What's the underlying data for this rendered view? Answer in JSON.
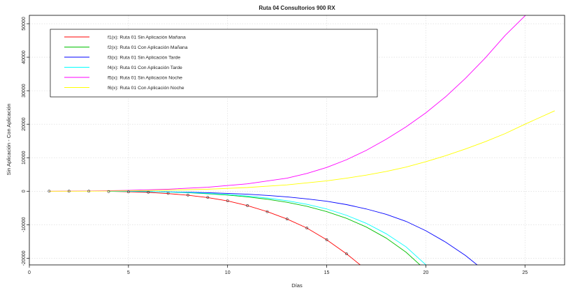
{
  "chart_data": {
    "type": "line",
    "title": "Ruta 04 Consultorios 900 RX",
    "xlabel": "Días",
    "ylabel": "Sin Aplicación - Con Aplicación",
    "xlim": [
      0,
      27
    ],
    "ylim": [
      -22000,
      52500
    ],
    "x_ticks": [
      0,
      5,
      10,
      15,
      20,
      25
    ],
    "y_ticks": [
      -20000,
      -10000,
      0,
      10000,
      20000,
      30000,
      40000,
      50000
    ],
    "grid": true,
    "legend_position": "top-left",
    "series": [
      {
        "name": "f1(x): Ruta 01 Sin Aplicación Mañana",
        "color": "#ff0000",
        "x": [
          4,
          5,
          6,
          7,
          8,
          9,
          10,
          11,
          12,
          13,
          14,
          15,
          16,
          16.9
        ],
        "y": [
          -30,
          -150,
          -350,
          -700,
          -1200,
          -1900,
          -2900,
          -4300,
          -6100,
          -8300,
          -11000,
          -14500,
          -18700,
          -23000
        ]
      },
      {
        "name": "f2(x): Ruta 01 Con Aplicación Mañana",
        "color": "#00c000",
        "x": [
          4,
          5,
          6,
          7,
          8,
          9,
          10,
          11,
          12,
          13,
          14,
          15,
          16,
          17,
          18,
          19,
          19.8
        ],
        "y": [
          0,
          -20,
          -100,
          -250,
          -450,
          -750,
          -1150,
          -1700,
          -2400,
          -3300,
          -4500,
          -6100,
          -8100,
          -10700,
          -14000,
          -18200,
          -22500
        ]
      },
      {
        "name": "f3(x): Ruta 01 Sin Aplicación Tarde",
        "color": "#0000ff",
        "x": [
          5,
          6,
          7,
          8,
          9,
          10,
          11,
          12,
          13,
          14,
          15,
          16,
          17,
          18,
          19,
          20,
          21,
          22,
          22.8
        ],
        "y": [
          -50,
          -120,
          -200,
          -300,
          -450,
          -650,
          -900,
          -1250,
          -1700,
          -2300,
          -3000,
          -4000,
          -5300,
          -6900,
          -9000,
          -11800,
          -15200,
          -19200,
          -23000
        ]
      },
      {
        "name": "f4(x): Ruta 01 Con Aplicación Tarde",
        "color": "#00ffff",
        "x": [
          4,
          5,
          6,
          7,
          8,
          9,
          10,
          11,
          12,
          13,
          14,
          15,
          16,
          17,
          18,
          19,
          20.1
        ],
        "y": [
          0,
          -20,
          -90,
          -220,
          -400,
          -650,
          -1000,
          -1450,
          -2050,
          -2850,
          -3900,
          -5300,
          -7200,
          -9600,
          -12700,
          -16600,
          -22500
        ]
      },
      {
        "name": "f5(x): Ruta 01 Sin Aplicación Noche",
        "color": "#ff00ff",
        "x": [
          1,
          3,
          5,
          7,
          9,
          11,
          13,
          14,
          15,
          16,
          17,
          18,
          19,
          20,
          21,
          22,
          23,
          24,
          25.2
        ],
        "y": [
          0,
          60,
          250,
          600,
          1200,
          2200,
          3900,
          5300,
          7100,
          9400,
          12200,
          15500,
          19200,
          23400,
          28200,
          33700,
          39800,
          46500,
          53500
        ]
      },
      {
        "name": "f6(x): Ruta 01 Con Aplicación Noche",
        "color": "#ffff00",
        "x": [
          1,
          3,
          5,
          7,
          9,
          11,
          13,
          15,
          16,
          17,
          18,
          19,
          20,
          21,
          22,
          23,
          24,
          25,
          26.5
        ],
        "y": [
          0,
          30,
          120,
          300,
          600,
          1100,
          1900,
          3100,
          3900,
          4800,
          5900,
          7200,
          8800,
          10600,
          12600,
          14800,
          17200,
          20000,
          24000
        ]
      }
    ],
    "observed_points": {
      "color": "#333333",
      "x": [
        1,
        2,
        3,
        4,
        5,
        6,
        7,
        8,
        9,
        10,
        11,
        12,
        13,
        14,
        15,
        16
      ],
      "y": [
        0,
        0,
        0,
        -100,
        -200,
        -300,
        -650,
        -1150,
        -1850,
        -2850,
        -4300,
        -6100,
        -8300,
        -11000,
        -14500,
        -18700
      ]
    }
  }
}
